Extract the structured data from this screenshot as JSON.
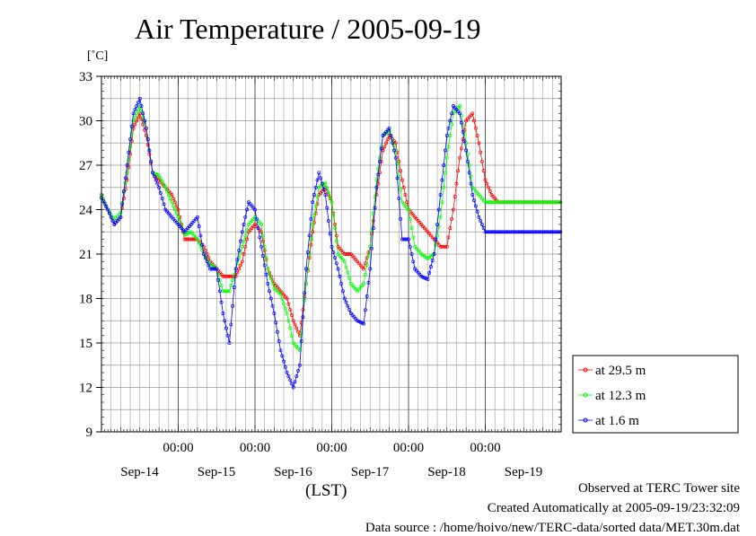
{
  "title": "Air Temperature / 2005-09-19",
  "unit_label": "[˚C]",
  "x_axis_label": "(LST)",
  "footer": {
    "line1": "Observed at TERC Tower site",
    "line2": "Created Automatically at 2005-09-19/23:32:09",
    "line3": "Data source : /home/hoivo/new/TERC-data/sorted  data/MET.30m.dat"
  },
  "chart_data": {
    "type": "line",
    "title": "Air Temperature / 2005-09-19",
    "ylabel": "[˚C]",
    "xlabel": "(LST)",
    "ylim": [
      9,
      33
    ],
    "yticks": [
      9,
      12,
      15,
      18,
      21,
      24,
      27,
      30,
      33
    ],
    "xlim_hours": [
      0,
      144
    ],
    "xticks": [
      {
        "hour": 24,
        "label": "00:00",
        "date": "Sep-14"
      },
      {
        "hour": 48,
        "label": "00:00",
        "date": "Sep-15"
      },
      {
        "hour": 72,
        "label": "00:00",
        "date": "Sep-16"
      },
      {
        "hour": 96,
        "label": "00:00",
        "date": "Sep-17"
      },
      {
        "hour": 120,
        "label": "00:00",
        "date": "Sep-18"
      },
      {
        "hour": 144,
        "label": "",
        "date": "Sep-19"
      }
    ],
    "grid": true,
    "legend_position": "right-bottom outside",
    "series": [
      {
        "name": "at 29.5 m",
        "color": "#ff0000",
        "x": [
          0,
          2,
          4,
          6,
          8,
          10,
          12,
          14,
          16,
          18,
          20,
          22,
          24,
          26,
          28,
          30,
          32,
          34,
          36,
          38,
          40,
          42,
          44,
          46,
          48,
          50,
          52,
          54,
          56,
          58,
          60,
          62,
          64,
          66,
          68,
          70,
          72,
          74,
          76,
          78,
          80,
          82,
          84,
          86,
          88,
          90,
          92,
          94,
          96,
          98,
          100,
          102,
          104,
          106,
          108,
          110,
          112,
          114,
          116,
          118,
          120,
          122,
          124,
          126,
          128,
          130,
          132,
          134,
          136,
          138,
          140,
          142,
          144
        ],
        "values": [
          25.0,
          24.0,
          23.0,
          23.5,
          26.0,
          29.5,
          30.5,
          29.0,
          26.5,
          26.0,
          25.5,
          25.0,
          24.0,
          22.0,
          22.0,
          22.0,
          21.5,
          20.5,
          20.0,
          19.5,
          19.5,
          19.5,
          20.5,
          22.5,
          23.0,
          22.5,
          20.0,
          19.0,
          18.5,
          18.0,
          16.5,
          15.5,
          19.0,
          22.5,
          25.0,
          25.5,
          24.5,
          21.5,
          21.0,
          21.0,
          20.5,
          20.0,
          21.5,
          25.0,
          28.0,
          29.0,
          28.5,
          26.0,
          24.0,
          23.5,
          23.0,
          22.5,
          22.0,
          21.5,
          21.5,
          24.0,
          27.5,
          30.0,
          30.5,
          28.5,
          26.0,
          25.0,
          24.5,
          24.5,
          24.5,
          24.5,
          24.5,
          24.5,
          24.5,
          24.5,
          24.5,
          24.5,
          24.5
        ]
      },
      {
        "name": "at 12.3 m",
        "color": "#00ff00",
        "x": [
          0,
          2,
          4,
          6,
          8,
          10,
          12,
          14,
          16,
          18,
          20,
          22,
          24,
          26,
          28,
          30,
          32,
          34,
          36,
          38,
          40,
          42,
          44,
          46,
          48,
          50,
          52,
          54,
          56,
          58,
          60,
          62,
          64,
          66,
          68,
          70,
          72,
          74,
          76,
          78,
          80,
          82,
          84,
          86,
          88,
          90,
          92,
          94,
          96,
          98,
          100,
          102,
          104,
          106,
          108,
          110,
          112,
          114,
          116,
          118,
          120,
          122,
          124,
          126,
          128,
          130,
          132,
          134,
          136,
          138,
          140,
          142,
          144
        ],
        "values": [
          25.0,
          24.0,
          23.3,
          23.8,
          26.5,
          30.0,
          31.0,
          29.5,
          26.5,
          26.3,
          25.5,
          24.5,
          23.5,
          22.3,
          22.5,
          22.0,
          21.0,
          20.3,
          20.0,
          18.5,
          18.5,
          20.0,
          21.5,
          23.0,
          23.5,
          23.0,
          20.0,
          18.7,
          18.3,
          17.0,
          15.0,
          14.5,
          19.0,
          23.0,
          25.5,
          25.8,
          24.5,
          21.0,
          20.5,
          19.0,
          18.5,
          19.0,
          21.5,
          26.0,
          29.0,
          29.3,
          28.0,
          24.5,
          24.0,
          21.5,
          21.0,
          20.7,
          21.0,
          23.5,
          27.5,
          30.5,
          31.0,
          28.5,
          25.5,
          25.0,
          24.5,
          24.5,
          24.5,
          24.5,
          24.5,
          24.5,
          24.5,
          24.5,
          24.5,
          24.5,
          24.5,
          24.5,
          24.5
        ]
      },
      {
        "name": "at 1.6 m",
        "color": "#0000ff",
        "x": [
          0,
          2,
          4,
          6,
          8,
          10,
          12,
          14,
          16,
          18,
          20,
          22,
          24,
          26,
          28,
          30,
          32,
          34,
          36,
          38,
          40,
          42,
          44,
          46,
          48,
          50,
          52,
          54,
          56,
          58,
          60,
          62,
          64,
          66,
          68,
          70,
          72,
          74,
          76,
          78,
          80,
          82,
          84,
          86,
          88,
          90,
          92,
          94,
          96,
          98,
          100,
          102,
          104,
          106,
          108,
          110,
          112,
          114,
          116,
          118,
          120,
          122,
          124,
          126,
          128,
          130,
          132,
          134,
          136,
          138,
          140,
          142,
          144
        ],
        "values": [
          24.8,
          24.0,
          23.0,
          23.5,
          27.0,
          30.5,
          31.5,
          29.5,
          26.5,
          25.5,
          24.0,
          23.5,
          23.0,
          22.5,
          23.0,
          23.5,
          21.0,
          20.0,
          20.0,
          17.0,
          15.0,
          20.0,
          22.5,
          24.5,
          24.0,
          21.5,
          19.0,
          17.0,
          14.5,
          13.0,
          12.0,
          13.5,
          20.0,
          24.5,
          26.5,
          25.0,
          21.5,
          20.0,
          18.0,
          17.0,
          16.5,
          16.3,
          20.0,
          25.5,
          29.0,
          29.5,
          27.5,
          22.0,
          22.0,
          20.0,
          19.5,
          19.3,
          21.0,
          25.0,
          29.0,
          31.0,
          30.5,
          28.0,
          25.0,
          23.5,
          22.5,
          22.5,
          22.5,
          22.5,
          22.5,
          22.5,
          22.5,
          22.5,
          22.5,
          22.5,
          22.5,
          22.5,
          22.5
        ]
      }
    ]
  }
}
